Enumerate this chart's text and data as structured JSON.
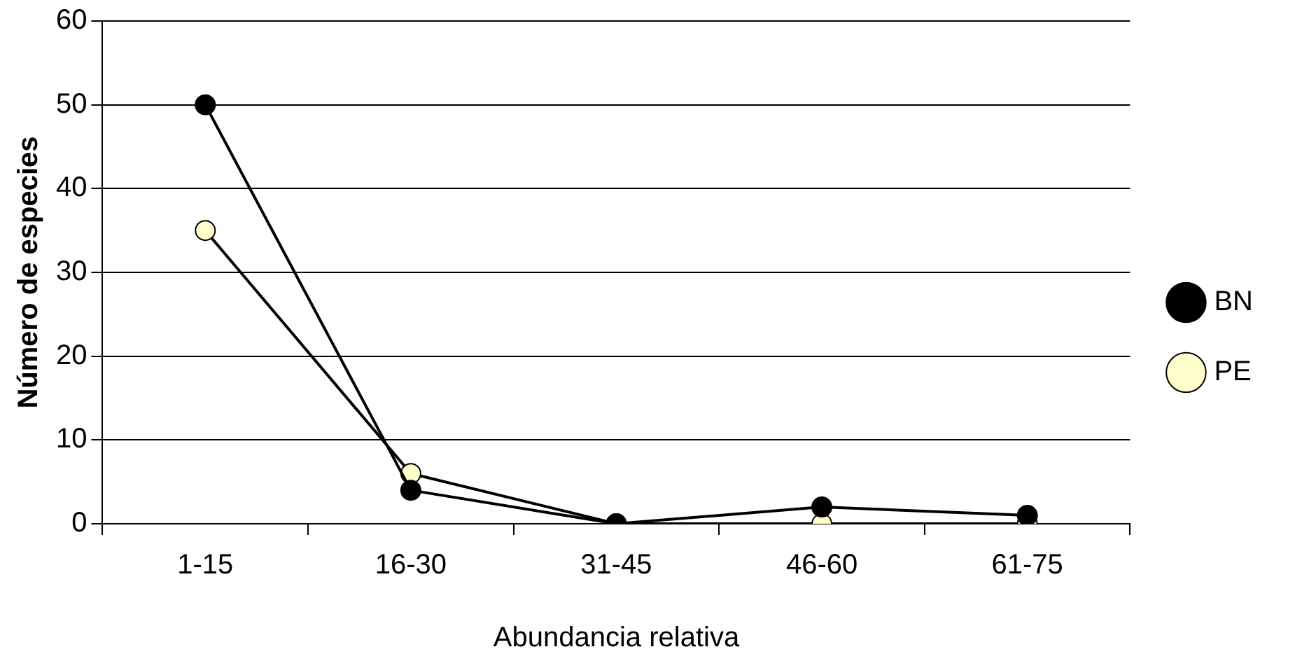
{
  "chart_data": {
    "type": "line",
    "xlabel": "Abundancia relativa",
    "ylabel": "Número de especies",
    "categories": [
      "1-15",
      "16-30",
      "31-45",
      "46-60",
      "61-75"
    ],
    "series": [
      {
        "name": "BN",
        "color": "#000000",
        "values": [
          50,
          4,
          0,
          2,
          1
        ]
      },
      {
        "name": "PE",
        "color": "#ffffcc",
        "values": [
          35,
          6,
          0,
          0,
          0
        ]
      }
    ],
    "ylim": [
      0,
      60
    ],
    "yticks": [
      0,
      10,
      20,
      30,
      40,
      50,
      60
    ],
    "grid": "y",
    "legend": "right",
    "marker": "circle",
    "line_style": "solid"
  }
}
